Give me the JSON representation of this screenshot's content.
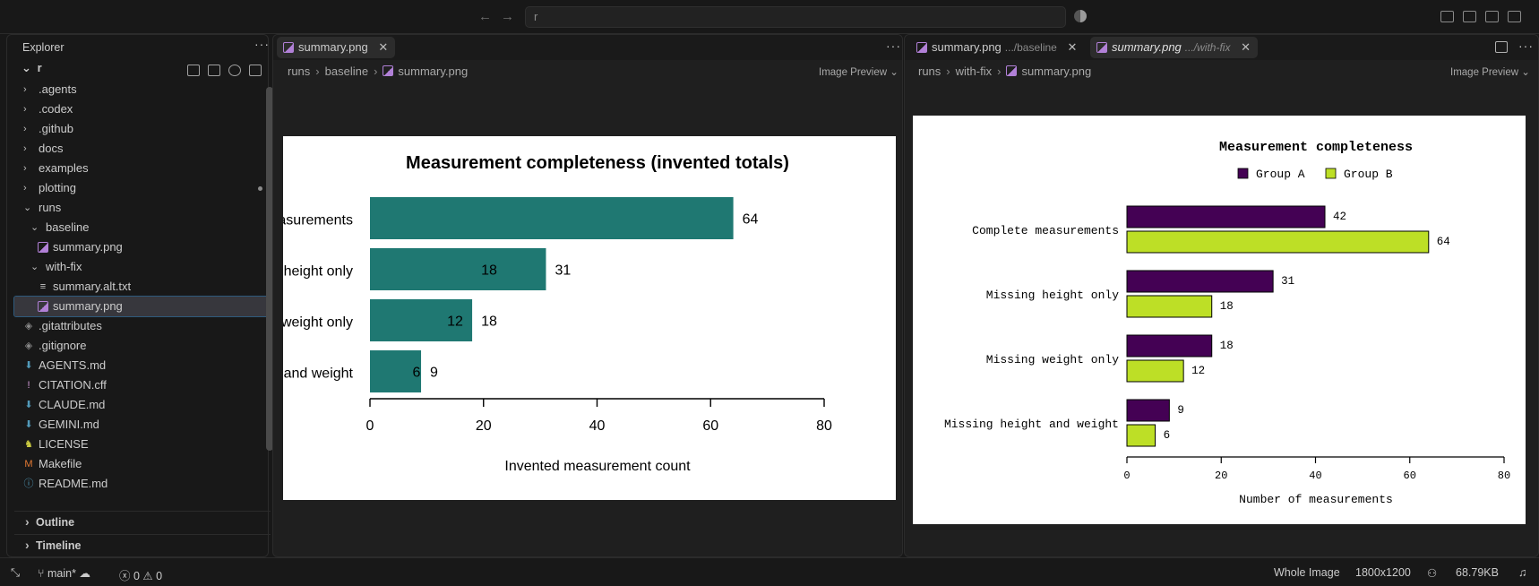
{
  "titlebar": {
    "search_text": "r"
  },
  "sidebar": {
    "title": "Explorer",
    "root": "r",
    "items": [
      {
        "label": ".agents",
        "kind": "folder",
        "depth": 0
      },
      {
        "label": ".codex",
        "kind": "folder",
        "depth": 0
      },
      {
        "label": ".github",
        "kind": "folder",
        "depth": 0
      },
      {
        "label": "docs",
        "kind": "folder",
        "depth": 0
      },
      {
        "label": "examples",
        "kind": "folder",
        "depth": 0
      },
      {
        "label": "plotting",
        "kind": "folder",
        "depth": 0
      },
      {
        "label": "runs",
        "kind": "folder-open",
        "depth": 0
      },
      {
        "label": "baseline",
        "kind": "folder-open",
        "depth": 1
      },
      {
        "label": "summary.png",
        "kind": "image",
        "depth": 2
      },
      {
        "label": "with-fix",
        "kind": "folder-open",
        "depth": 1
      },
      {
        "label": "summary.alt.txt",
        "kind": "text",
        "depth": 2
      },
      {
        "label": "summary.png",
        "kind": "image",
        "depth": 2
      },
      {
        "label": ".gitattributes",
        "kind": "git",
        "depth": 0
      },
      {
        "label": ".gitignore",
        "kind": "git",
        "depth": 0
      },
      {
        "label": "AGENTS.md",
        "kind": "md",
        "depth": 0
      },
      {
        "label": "CITATION.cff",
        "kind": "cff",
        "depth": 0
      },
      {
        "label": "CLAUDE.md",
        "kind": "md",
        "depth": 0
      },
      {
        "label": "GEMINI.md",
        "kind": "md",
        "depth": 0
      },
      {
        "label": "LICENSE",
        "kind": "license",
        "depth": 0
      },
      {
        "label": "Makefile",
        "kind": "make",
        "depth": 0
      },
      {
        "label": "README.md",
        "kind": "info",
        "depth": 0
      }
    ],
    "sections": {
      "outline": "Outline",
      "timeline": "Timeline"
    }
  },
  "editor_left": {
    "tab": {
      "label": "summary.png"
    },
    "breadcrumb": [
      "runs",
      "baseline",
      "summary.png"
    ],
    "preview_mode": "Image Preview"
  },
  "editor_right": {
    "tabs": [
      {
        "label": "summary.png",
        "desc": ".../baseline"
      },
      {
        "label": "summary.png",
        "desc": ".../with-fix"
      }
    ],
    "breadcrumb": [
      "runs",
      "with-fix",
      "summary.png"
    ],
    "preview_mode": "Image Preview"
  },
  "chart_data": [
    {
      "type": "bar",
      "title": "Measurement completeness (invented totals)",
      "xlabel": "Invented measurement count",
      "categories_visible": [
        "asurements",
        "height only",
        "weight only",
        "and weight"
      ],
      "values": [
        64,
        31,
        18,
        9
      ],
      "inner_labels": [
        null,
        18,
        12,
        6
      ],
      "xlim": [
        0,
        80
      ],
      "xticks": [
        0,
        20,
        40,
        60,
        80
      ],
      "bar_color": "#1f7872",
      "orientation": "horizontal"
    },
    {
      "type": "bar",
      "title": "Measurement completeness",
      "xlabel": "Number of measurements",
      "categories": [
        "Complete measurements",
        "Missing height only",
        "Missing weight only",
        "Missing height and weight"
      ],
      "series": [
        {
          "name": "Group A",
          "values": [
            42,
            31,
            18,
            9
          ],
          "color": "#440154"
        },
        {
          "name": "Group B",
          "values": [
            64,
            18,
            12,
            6
          ],
          "color": "#bddf26"
        }
      ],
      "xlim": [
        0,
        80
      ],
      "xticks": [
        0,
        20,
        40,
        60,
        80
      ],
      "legend": "top",
      "orientation": "horizontal"
    }
  ],
  "statusbar": {
    "branch": "main*",
    "errors": "0",
    "warnings": "0",
    "zoom": "Whole Image",
    "dimensions": "1800x1200",
    "size": "68.79KB"
  }
}
